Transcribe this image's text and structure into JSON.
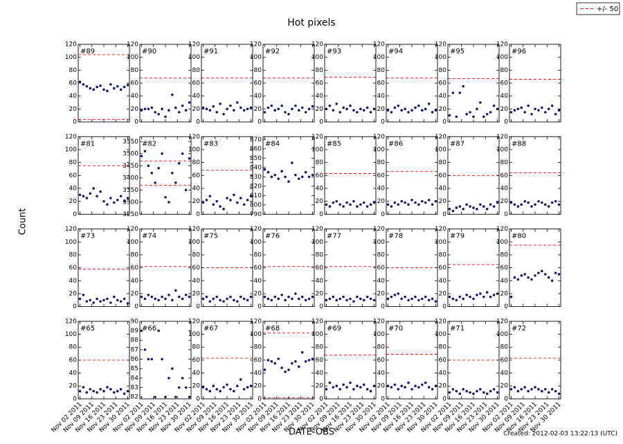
{
  "chart_data": {
    "type": "scatter",
    "title": "Hot pixels",
    "xlabel": "DATE-OBS",
    "ylabel": "Count",
    "footer": "Created: 2012-02-03 13:22:13 (UTC)",
    "legend": {
      "label": "+/- 50",
      "color": "#ff0000",
      "corner": "upper right"
    },
    "marker_color": "#191970",
    "x": [
      "2011-11-02",
      "2011-11-04",
      "2011-11-06",
      "2011-11-08",
      "2011-11-10",
      "2011-11-12",
      "2011-11-14",
      "2011-11-16",
      "2011-11-18",
      "2011-11-20",
      "2011-11-22",
      "2011-11-24",
      "2011-11-26",
      "2011-11-28",
      "2011-11-30"
    ],
    "xlim": [
      "2011-11-01",
      "2011-12-01"
    ],
    "xticks": [
      {
        "value": "2011-11-02",
        "label": "Nov 02 2011"
      },
      {
        "value": "2011-11-09",
        "label": "Nov 09 2011"
      },
      {
        "value": "2011-11-16",
        "label": "Nov 16 2011"
      },
      {
        "value": "2011-11-23",
        "label": "Nov 23 2011"
      },
      {
        "value": "2011-11-30",
        "label": "Nov 30 2011"
      }
    ],
    "series": [
      {
        "name": "#89",
        "ylim": [
          0,
          120
        ],
        "yticks": [
          0,
          20,
          40,
          60,
          80,
          100,
          120
        ],
        "limits": [
          104,
          4
        ],
        "values": [
          62,
          58,
          55,
          52,
          50,
          54,
          56,
          50,
          48,
          58,
          52,
          55,
          50,
          54,
          57
        ]
      },
      {
        "name": "#90",
        "ylim": [
          0,
          120
        ],
        "yticks": [
          0,
          20,
          40,
          60,
          80,
          100,
          120
        ],
        "limits": [
          68
        ],
        "values": [
          18,
          20,
          20,
          22,
          15,
          12,
          20,
          8,
          18,
          42,
          22,
          15,
          25,
          18,
          30
        ]
      },
      {
        "name": "#91",
        "ylim": [
          0,
          120
        ],
        "yticks": [
          0,
          20,
          40,
          60,
          80,
          100,
          120
        ],
        "limits": [
          68
        ],
        "values": [
          22,
          20,
          18,
          24,
          15,
          28,
          12,
          20,
          25,
          18,
          30,
          22,
          18,
          20,
          22
        ]
      },
      {
        "name": "#92",
        "ylim": [
          0,
          120
        ],
        "yticks": [
          0,
          20,
          40,
          60,
          80,
          100,
          120
        ],
        "limits": [
          68
        ],
        "values": [
          15,
          22,
          25,
          18,
          20,
          25,
          15,
          12,
          20,
          25,
          18,
          22,
          15,
          20,
          24
        ]
      },
      {
        "name": "#93",
        "ylim": [
          0,
          120
        ],
        "yticks": [
          0,
          20,
          40,
          60,
          80,
          100,
          120
        ],
        "limits": [
          69
        ],
        "values": [
          20,
          25,
          18,
          28,
          15,
          22,
          20,
          25,
          18,
          15,
          20,
          18,
          22,
          15,
          20
        ]
      },
      {
        "name": "#94",
        "ylim": [
          0,
          120
        ],
        "yticks": [
          0,
          20,
          40,
          60,
          80,
          100,
          120
        ],
        "limits": [
          68
        ],
        "values": [
          18,
          15,
          22,
          25,
          18,
          20,
          15,
          18,
          22,
          25,
          18,
          20,
          28,
          15,
          18
        ]
      },
      {
        "name": "#95",
        "ylim": [
          0,
          120
        ],
        "yticks": [
          0,
          20,
          40,
          60,
          80,
          100,
          120
        ],
        "limits": [
          67
        ],
        "values": [
          10,
          45,
          8,
          45,
          55,
          12,
          15,
          8,
          20,
          30,
          8,
          12,
          15,
          25,
          20
        ]
      },
      {
        "name": "#96",
        "ylim": [
          0,
          120
        ],
        "yticks": [
          0,
          20,
          40,
          60,
          80,
          100,
          120
        ],
        "limits": [
          66
        ],
        "values": [
          15,
          18,
          20,
          22,
          15,
          25,
          12,
          20,
          18,
          22,
          15,
          20,
          25,
          12,
          18
        ]
      },
      {
        "name": "#81",
        "ylim": [
          0,
          120
        ],
        "yticks": [
          0,
          20,
          40,
          60,
          80,
          100,
          120
        ],
        "limits": [
          75
        ],
        "values": [
          30,
          28,
          25,
          32,
          40,
          28,
          35,
          20,
          15,
          25,
          18,
          22,
          28,
          20,
          25
        ]
      },
      {
        "name": "#82",
        "ylim": [
          3250,
          3570
        ],
        "yticks": [
          3250,
          3300,
          3350,
          3400,
          3450,
          3500,
          3550
        ],
        "limits": [
          3470,
          3370
        ],
        "values": [
          3490,
          3510,
          3450,
          3420,
          3380,
          3440,
          3500,
          3320,
          3300,
          3420,
          3380,
          3460,
          3500,
          3350,
          3480
        ]
      },
      {
        "name": "#83",
        "ylim": [
          0,
          120
        ],
        "yticks": [
          0,
          20,
          40,
          60,
          80,
          100,
          120
        ],
        "limits": [
          68
        ],
        "values": [
          18,
          22,
          28,
          15,
          20,
          12,
          8,
          25,
          22,
          30,
          18,
          25,
          15,
          22,
          28
        ]
      },
      {
        "name": "#84",
        "ylim": [
          790,
          873
        ],
        "yticks": [
          790,
          800,
          810,
          820,
          830,
          840,
          850,
          860,
          870
        ],
        "values": [
          838,
          835,
          830,
          832,
          828,
          836,
          830,
          825,
          845,
          832,
          828,
          830,
          835,
          830,
          832
        ]
      },
      {
        "name": "#85",
        "ylim": [
          0,
          120
        ],
        "yticks": [
          0,
          20,
          40,
          60,
          80,
          100,
          120
        ],
        "limits": [
          63
        ],
        "values": [
          15,
          12,
          18,
          20,
          15,
          12,
          18,
          15,
          20,
          12,
          15,
          18,
          12,
          15,
          18
        ]
      },
      {
        "name": "#86",
        "ylim": [
          0,
          120
        ],
        "yticks": [
          0,
          20,
          40,
          60,
          80,
          100,
          120
        ],
        "limits": [
          66
        ],
        "values": [
          15,
          12,
          18,
          15,
          20,
          18,
          15,
          22,
          18,
          15,
          20,
          18,
          22,
          15,
          20
        ]
      },
      {
        "name": "#87",
        "ylim": [
          0,
          120
        ],
        "yticks": [
          0,
          20,
          40,
          60,
          80,
          100,
          120
        ],
        "limits": [
          60
        ],
        "values": [
          8,
          5,
          10,
          12,
          8,
          15,
          12,
          10,
          8,
          15,
          12,
          8,
          15,
          12,
          18
        ]
      },
      {
        "name": "#88",
        "ylim": [
          0,
          120
        ],
        "yticks": [
          0,
          20,
          40,
          60,
          80,
          100,
          120
        ],
        "limits": [
          64
        ],
        "values": [
          18,
          15,
          12,
          15,
          20,
          18,
          12,
          15,
          20,
          18,
          15,
          12,
          18,
          20,
          15
        ]
      },
      {
        "name": "#73",
        "ylim": [
          0,
          120
        ],
        "yticks": [
          0,
          20,
          40,
          60,
          80,
          100,
          120
        ],
        "limits": [
          58
        ],
        "values": [
          12,
          18,
          8,
          10,
          6,
          12,
          8,
          10,
          12,
          6,
          15,
          10,
          8,
          12,
          5
        ]
      },
      {
        "name": "#74",
        "ylim": [
          0,
          120
        ],
        "yticks": [
          0,
          20,
          40,
          60,
          80,
          100,
          120
        ],
        "limits": [
          62
        ],
        "values": [
          15,
          12,
          18,
          15,
          12,
          10,
          15,
          12,
          18,
          10,
          25,
          15,
          12,
          18,
          15
        ]
      },
      {
        "name": "#75",
        "ylim": [
          0,
          120
        ],
        "yticks": [
          0,
          20,
          40,
          60,
          80,
          100,
          120
        ],
        "limits": [
          60
        ],
        "values": [
          12,
          15,
          8,
          12,
          15,
          10,
          8,
          12,
          15,
          10,
          8,
          15,
          12,
          10,
          15
        ]
      },
      {
        "name": "#76",
        "ylim": [
          0,
          120
        ],
        "yticks": [
          0,
          20,
          40,
          60,
          80,
          100,
          120
        ],
        "limits": [
          62
        ],
        "values": [
          15,
          12,
          10,
          15,
          12,
          18,
          10,
          15,
          12,
          20,
          12,
          15,
          10,
          12,
          15
        ]
      },
      {
        "name": "#77",
        "ylim": [
          0,
          120
        ],
        "yticks": [
          0,
          20,
          40,
          60,
          80,
          100,
          120
        ],
        "limits": [
          62
        ],
        "values": [
          10,
          12,
          15,
          10,
          12,
          15,
          10,
          12,
          8,
          15,
          12,
          10,
          15,
          12,
          10
        ]
      },
      {
        "name": "#78",
        "ylim": [
          0,
          120
        ],
        "yticks": [
          0,
          20,
          40,
          60,
          80,
          100,
          120
        ],
        "limits": [
          60
        ],
        "values": [
          12,
          15,
          18,
          20,
          12,
          15,
          10,
          12,
          15,
          10,
          12,
          15,
          10,
          12,
          8
        ]
      },
      {
        "name": "#79",
        "ylim": [
          0,
          120
        ],
        "yticks": [
          0,
          20,
          40,
          60,
          80,
          100,
          120
        ],
        "limits": [
          65
        ],
        "values": [
          15,
          12,
          10,
          15,
          12,
          18,
          15,
          12,
          18,
          20,
          15,
          22,
          15,
          18,
          20
        ]
      },
      {
        "name": "#80",
        "ylim": [
          0,
          120
        ],
        "yticks": [
          0,
          20,
          40,
          60,
          80,
          100,
          120
        ],
        "limits": [
          95
        ],
        "values": [
          15,
          45,
          42,
          48,
          50,
          45,
          42,
          48,
          52,
          55,
          50,
          45,
          40,
          52,
          50
        ]
      },
      {
        "name": "#65",
        "ylim": [
          0,
          120
        ],
        "yticks": [
          0,
          20,
          40,
          60,
          80,
          100,
          120
        ],
        "limits": [
          60
        ],
        "values": [
          12,
          18,
          10,
          15,
          12,
          10,
          15,
          12,
          18,
          15,
          10,
          12,
          15,
          8,
          12
        ]
      },
      {
        "name": "#66",
        "ylim": [
          81.8,
          90
        ],
        "yticks": [
          82,
          83,
          84,
          85,
          86,
          87,
          88,
          89,
          90
        ],
        "values": [
          89,
          87,
          86,
          86,
          82,
          89,
          86,
          82,
          84,
          85,
          82,
          83,
          84,
          83,
          82
        ]
      },
      {
        "name": "#67",
        "ylim": [
          0,
          120
        ],
        "yticks": [
          0,
          20,
          40,
          60,
          80,
          100,
          120
        ],
        "limits": [
          63
        ],
        "values": [
          18,
          15,
          12,
          20,
          15,
          12,
          18,
          22,
          15,
          12,
          20,
          30,
          15,
          18,
          20
        ]
      },
      {
        "name": "#68",
        "ylim": [
          0,
          120
        ],
        "yticks": [
          0,
          20,
          40,
          60,
          80,
          100,
          120
        ],
        "limits": [
          102,
          2
        ],
        "values": [
          45,
          60,
          58,
          55,
          62,
          48,
          42,
          45,
          55,
          58,
          50,
          72,
          58,
          60,
          62
        ]
      },
      {
        "name": "#69",
        "ylim": [
          0,
          120
        ],
        "yticks": [
          0,
          20,
          40,
          60,
          80,
          100,
          120
        ],
        "limits": [
          68
        ],
        "values": [
          15,
          25,
          18,
          20,
          15,
          22,
          18,
          25,
          15,
          20,
          18,
          22,
          15,
          12,
          20
        ]
      },
      {
        "name": "#70",
        "ylim": [
          0,
          120
        ],
        "yticks": [
          0,
          20,
          40,
          60,
          80,
          100,
          120
        ],
        "limits": [
          69
        ],
        "values": [
          20,
          18,
          22,
          15,
          20,
          18,
          25,
          15,
          20,
          18,
          22,
          25,
          18,
          15,
          20
        ]
      },
      {
        "name": "#71",
        "ylim": [
          0,
          120
        ],
        "yticks": [
          0,
          20,
          40,
          60,
          80,
          100,
          120
        ],
        "limits": [
          60
        ],
        "values": [
          10,
          15,
          12,
          8,
          15,
          12,
          10,
          8,
          12,
          15,
          10,
          8,
          12,
          15,
          10
        ]
      },
      {
        "name": "#72",
        "ylim": [
          0,
          120
        ],
        "yticks": [
          0,
          20,
          40,
          60,
          80,
          100,
          120
        ],
        "limits": [
          63
        ],
        "values": [
          15,
          18,
          12,
          15,
          18,
          12,
          15,
          18,
          15,
          12,
          15,
          10,
          15,
          12,
          8
        ]
      }
    ]
  }
}
